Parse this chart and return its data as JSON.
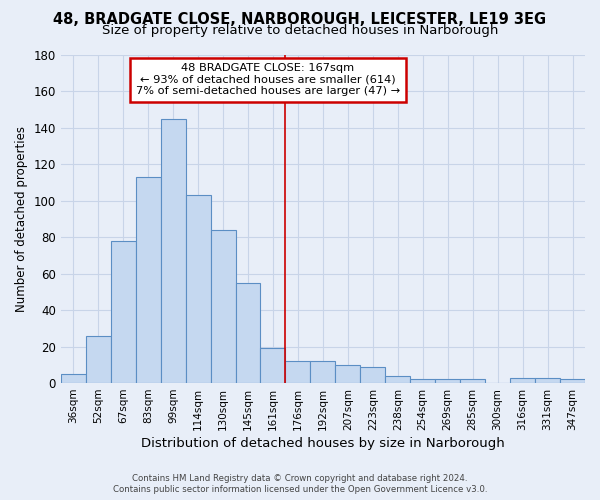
{
  "title1": "48, BRADGATE CLOSE, NARBOROUGH, LEICESTER, LE19 3EG",
  "title2": "Size of property relative to detached houses in Narborough",
  "xlabel": "Distribution of detached houses by size in Narborough",
  "ylabel": "Number of detached properties",
  "footer1": "Contains HM Land Registry data © Crown copyright and database right 2024.",
  "footer2": "Contains public sector information licensed under the Open Government Licence v3.0.",
  "categories": [
    "36sqm",
    "52sqm",
    "67sqm",
    "83sqm",
    "99sqm",
    "114sqm",
    "130sqm",
    "145sqm",
    "161sqm",
    "176sqm",
    "192sqm",
    "207sqm",
    "223sqm",
    "238sqm",
    "254sqm",
    "269sqm",
    "285sqm",
    "300sqm",
    "316sqm",
    "331sqm",
    "347sqm"
  ],
  "values": [
    5,
    26,
    78,
    113,
    145,
    103,
    84,
    55,
    19,
    12,
    12,
    10,
    9,
    4,
    2,
    2,
    2,
    0,
    3,
    3,
    2
  ],
  "bar_color": "#c5d8f0",
  "bar_edge_color": "#5b8ec4",
  "annotation_text1": "48 BRADGATE CLOSE: 167sqm",
  "annotation_text2": "← 93% of detached houses are smaller (614)",
  "annotation_text3": "7% of semi-detached houses are larger (47) →",
  "annotation_box_color": "#ffffff",
  "annotation_edge_color": "#cc0000",
  "vline_color": "#cc0000",
  "ylim": [
    0,
    180
  ],
  "yticks": [
    0,
    20,
    40,
    60,
    80,
    100,
    120,
    140,
    160,
    180
  ],
  "grid_color": "#c8d4e8",
  "background_color": "#e8eef8",
  "title_fontsize": 10.5,
  "subtitle_fontsize": 9.5,
  "xlabel_fontsize": 9.5,
  "ylabel_fontsize": 8.5,
  "bar_width": 1.0,
  "vline_x": 8.5
}
